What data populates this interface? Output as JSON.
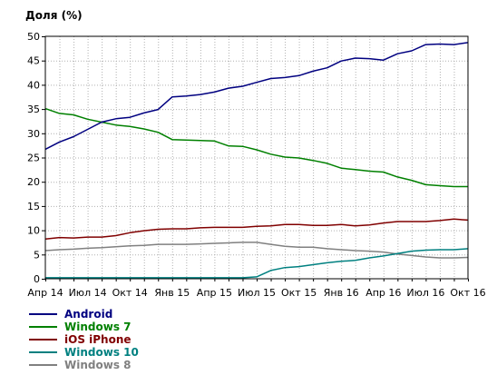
{
  "chart_data": {
    "type": "line",
    "ylabel": "Доля (%)",
    "ylim": [
      0,
      50
    ],
    "yticks": [
      0,
      5,
      10,
      15,
      20,
      25,
      30,
      35,
      40,
      45,
      50
    ],
    "xtick_labels": [
      "Апр 14",
      "Июл 14",
      "Окт 14",
      "Янв 15",
      "Апр 15",
      "Июл 15",
      "Окт 15",
      "Янв 16",
      "Апр 16",
      "Июл 16",
      "Окт 16"
    ],
    "grid": true,
    "legend_position": "bottom-left",
    "x": [
      "2014-04",
      "2014-05",
      "2014-06",
      "2014-07",
      "2014-08",
      "2014-09",
      "2014-10",
      "2014-11",
      "2014-12",
      "2015-01",
      "2015-02",
      "2015-03",
      "2015-04",
      "2015-05",
      "2015-06",
      "2015-07",
      "2015-08",
      "2015-09",
      "2015-10",
      "2015-11",
      "2015-12",
      "2016-01",
      "2016-02",
      "2016-03",
      "2016-04",
      "2016-05",
      "2016-06",
      "2016-07",
      "2016-08",
      "2016-09",
      "2016-10"
    ],
    "series": [
      {
        "name": "Android",
        "color": "#000080",
        "values": [
          26.7,
          28.2,
          29.3,
          30.8,
          32.3,
          33.0,
          33.3,
          34.2,
          34.9,
          37.5,
          37.7,
          38.0,
          38.5,
          39.3,
          39.7,
          40.5,
          41.3,
          41.5,
          41.9,
          42.8,
          43.5,
          44.9,
          45.5,
          45.4,
          45.1,
          46.4,
          47.0,
          48.3,
          48.4,
          48.3,
          48.7
        ]
      },
      {
        "name": "Windows 7",
        "color": "#008000",
        "values": [
          35.1,
          34.1,
          33.8,
          32.9,
          32.3,
          31.7,
          31.4,
          30.9,
          30.2,
          28.7,
          28.6,
          28.5,
          28.4,
          27.4,
          27.3,
          26.6,
          25.7,
          25.1,
          24.9,
          24.4,
          23.8,
          22.8,
          22.5,
          22.2,
          22.0,
          21.0,
          20.3,
          19.4,
          19.2,
          19.0,
          19.0
        ]
      },
      {
        "name": "iOS iPhone",
        "color": "#800000",
        "values": [
          8.2,
          8.5,
          8.4,
          8.6,
          8.6,
          8.9,
          9.5,
          9.9,
          10.2,
          10.3,
          10.3,
          10.5,
          10.6,
          10.6,
          10.6,
          10.8,
          10.9,
          11.2,
          11.2,
          11.0,
          11.0,
          11.2,
          10.9,
          11.1,
          11.5,
          11.8,
          11.8,
          11.8,
          12.0,
          12.3,
          12.1
        ]
      },
      {
        "name": "Windows 10",
        "color": "#008080",
        "values": [
          0.2,
          0.2,
          0.2,
          0.2,
          0.2,
          0.2,
          0.2,
          0.2,
          0.2,
          0.2,
          0.2,
          0.2,
          0.2,
          0.2,
          0.2,
          0.4,
          1.7,
          2.3,
          2.5,
          2.9,
          3.3,
          3.6,
          3.8,
          4.3,
          4.7,
          5.2,
          5.7,
          5.9,
          6.0,
          6.0,
          6.2
        ]
      },
      {
        "name": "Windows 8",
        "color": "#808080",
        "values": [
          5.8,
          6.0,
          6.1,
          6.3,
          6.4,
          6.6,
          6.8,
          6.9,
          7.1,
          7.1,
          7.1,
          7.2,
          7.3,
          7.4,
          7.5,
          7.5,
          7.1,
          6.7,
          6.5,
          6.5,
          6.2,
          6.0,
          5.8,
          5.7,
          5.5,
          5.1,
          4.8,
          4.5,
          4.3,
          4.3,
          4.4
        ]
      }
    ]
  }
}
